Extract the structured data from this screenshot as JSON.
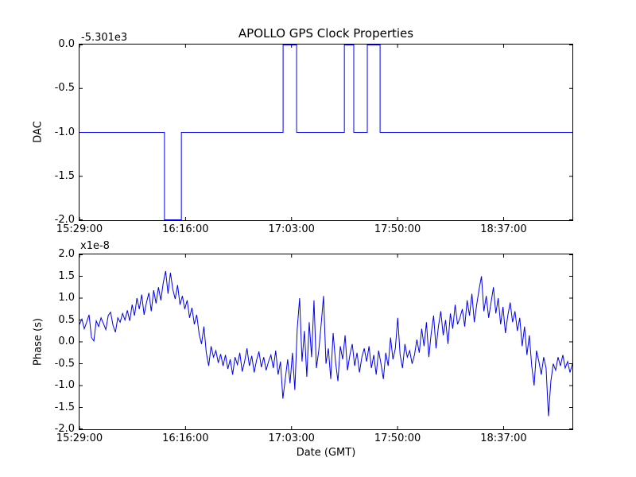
{
  "figure": {
    "title": "APOLLO GPS Clock Properties",
    "xlabel": "Date (GMT)",
    "background_color": "#ffffff",
    "frame_color": "#000000",
    "line_color": "#0000ee",
    "x_start_time": "15:29:00",
    "x_total_minutes": 218.5,
    "x_tick_labels": [
      "15:29:00",
      "16:16:00",
      "17:03:00",
      "17:50:00",
      "18:37:00"
    ],
    "x_tick_minutes": [
      0,
      47,
      94,
      141,
      188
    ]
  },
  "chart_data": [
    {
      "type": "line",
      "subplot": "top",
      "title": "APOLLO GPS Clock Properties",
      "ylabel": "DAC",
      "y_offset_text": "-5.301e3",
      "ylim": [
        -2.0,
        0.0
      ],
      "y_tick_labels": [
        "0.0",
        "-0.5",
        "-1.0",
        "-1.5",
        "-2.0"
      ],
      "y_tick_values": [
        0.0,
        -0.5,
        -1.0,
        -1.5,
        -2.0
      ],
      "x_tick_labels": [
        "15:29:00",
        "16:16:00",
        "17:03:00",
        "17:50:00",
        "18:37:00"
      ],
      "grid": false,
      "legend": "none",
      "note": "displayed value = true DAC value minus offset -5.301e3; step trace",
      "series": [
        {
          "name": "DAC",
          "segments": [
            {
              "start": "15:29:00",
              "end": "16:06:40",
              "value": -1.0
            },
            {
              "start": "16:06:40",
              "end": "16:14:10",
              "value": -2.0
            },
            {
              "start": "16:14:10",
              "end": "16:59:15",
              "value": -1.0
            },
            {
              "start": "16:59:15",
              "end": "17:05:15",
              "value": 0.0
            },
            {
              "start": "17:05:15",
              "end": "17:26:25",
              "value": -1.0
            },
            {
              "start": "17:26:25",
              "end": "17:30:35",
              "value": 0.0
            },
            {
              "start": "17:30:35",
              "end": "17:36:35",
              "value": -1.0
            },
            {
              "start": "17:36:35",
              "end": "17:42:15",
              "value": 0.0
            },
            {
              "start": "17:42:15",
              "end": "19:07:30",
              "value": -1.0
            }
          ]
        }
      ]
    },
    {
      "type": "line",
      "subplot": "bottom",
      "ylabel": "Phase (s)",
      "y_multiplier_text": "x1e-8",
      "xlabel": "Date (GMT)",
      "ylim": [
        -2.0,
        2.0
      ],
      "y_tick_labels": [
        "2.0",
        "1.5",
        "1.0",
        "0.5",
        "0.0",
        "-0.5",
        "-1.0",
        "-1.5",
        "-2.0"
      ],
      "y_tick_values": [
        2.0,
        1.5,
        1.0,
        0.5,
        0.0,
        -0.5,
        -1.0,
        -1.5,
        -2.0
      ],
      "x_tick_labels": [
        "15:29:00",
        "16:16:00",
        "17:03:00",
        "17:50:00",
        "18:37:00"
      ],
      "grid": false,
      "legend": "none",
      "note": "values in units of 1e-8 s, evenly sampled from 15:29:00 to 19:07:30 GMT",
      "series": [
        {
          "name": "Phase",
          "x_start": "15:29:00",
          "x_step_minutes": 1.0607,
          "values": [
            0.4,
            0.52,
            0.3,
            0.45,
            0.62,
            0.1,
            0.02,
            0.48,
            0.35,
            0.55,
            0.42,
            0.28,
            0.6,
            0.68,
            0.38,
            0.22,
            0.55,
            0.45,
            0.65,
            0.5,
            0.72,
            0.48,
            0.85,
            0.6,
            1.0,
            0.75,
            1.08,
            0.62,
            0.9,
            1.12,
            0.7,
            1.18,
            0.88,
            1.25,
            0.95,
            1.35,
            1.62,
            1.1,
            1.58,
            1.2,
            0.98,
            1.3,
            0.85,
            1.05,
            0.75,
            0.95,
            0.55,
            0.78,
            0.4,
            0.62,
            0.18,
            -0.05,
            0.35,
            -0.25,
            -0.55,
            -0.1,
            -0.35,
            -0.2,
            -0.48,
            -0.28,
            -0.55,
            -0.3,
            -0.62,
            -0.4,
            -0.75,
            -0.35,
            -0.52,
            -0.25,
            -0.68,
            -0.45,
            -0.15,
            -0.55,
            -0.32,
            -0.7,
            -0.42,
            -0.22,
            -0.58,
            -0.35,
            -0.65,
            -0.45,
            -0.3,
            -0.6,
            -0.2,
            -0.75,
            -0.45,
            -1.3,
            -0.85,
            -0.4,
            -0.95,
            -0.25,
            -1.1,
            0.3,
            1.0,
            -0.45,
            0.25,
            -0.8,
            0.45,
            -0.35,
            0.95,
            -0.6,
            -0.2,
            0.4,
            1.05,
            -0.5,
            -0.15,
            -0.85,
            0.2,
            -0.45,
            -0.9,
            -0.1,
            -0.4,
            0.15,
            -0.65,
            -0.3,
            -0.05,
            -0.55,
            -0.25,
            -0.7,
            -0.35,
            -0.15,
            -0.45,
            -0.1,
            -0.6,
            -0.3,
            -0.75,
            -0.2,
            -0.5,
            -0.85,
            -0.25,
            -0.55,
            0.1,
            -0.4,
            -0.15,
            0.55,
            -0.3,
            -0.6,
            -0.05,
            -0.35,
            -0.2,
            -0.5,
            -0.3,
            0.05,
            -0.25,
            0.3,
            -0.1,
            0.45,
            -0.35,
            0.2,
            0.6,
            -0.15,
            0.35,
            0.7,
            0.15,
            0.5,
            -0.05,
            0.65,
            0.3,
            0.85,
            0.4,
            0.55,
            0.75,
            0.35,
            0.95,
            0.6,
            1.1,
            0.45,
            0.85,
            1.2,
            1.5,
            0.7,
            1.05,
            0.55,
            0.9,
            1.25,
            0.65,
            1.0,
            0.4,
            0.8,
            0.2,
            0.6,
            0.9,
            0.45,
            0.7,
            0.25,
            0.55,
            -0.1,
            0.35,
            -0.3,
            0.15,
            -0.55,
            -1.0,
            -0.2,
            -0.45,
            -0.75,
            -0.35,
            -0.6,
            -1.7,
            -0.9,
            -0.5,
            -0.65,
            -0.35,
            -0.55,
            -0.3,
            -0.6,
            -0.45,
            -0.7,
            -0.5
          ]
        }
      ]
    }
  ]
}
